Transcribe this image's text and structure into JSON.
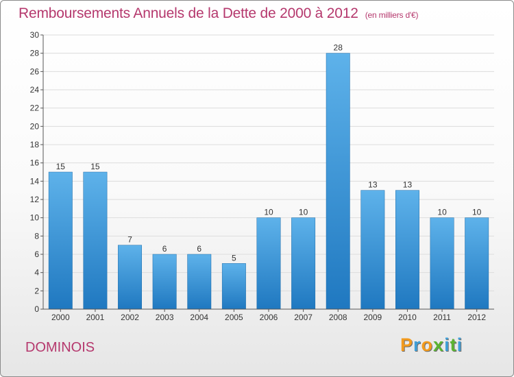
{
  "chart_data": {
    "type": "bar",
    "title": "Remboursements Annuels de la Dette de 2000 à 2012",
    "unit_note": "(en milliers d'€)",
    "categories": [
      "2000",
      "2001",
      "2002",
      "2003",
      "2004",
      "2005",
      "2006",
      "2007",
      "2008",
      "2009",
      "2010",
      "2011",
      "2012"
    ],
    "values": [
      15,
      15,
      7,
      6,
      6,
      5,
      10,
      10,
      28,
      13,
      13,
      10,
      10
    ],
    "ylim": [
      0,
      30
    ],
    "yticks": [
      0,
      2,
      4,
      6,
      8,
      10,
      12,
      14,
      16,
      18,
      20,
      22,
      24,
      26,
      28,
      30
    ],
    "grid": true,
    "legend": "none",
    "bar_color": "#2f8fd6"
  },
  "footer": {
    "commune": "DOMINOIS",
    "brand": {
      "letters": [
        "P",
        "r",
        "o",
        "x",
        "i",
        "t",
        "i"
      ],
      "colors": [
        "#f29a1d",
        "#3f9fd8",
        "#f29a1d",
        "#5bb431",
        "#3f9fd8",
        "#5bb431",
        "#3f9fd8"
      ]
    }
  }
}
